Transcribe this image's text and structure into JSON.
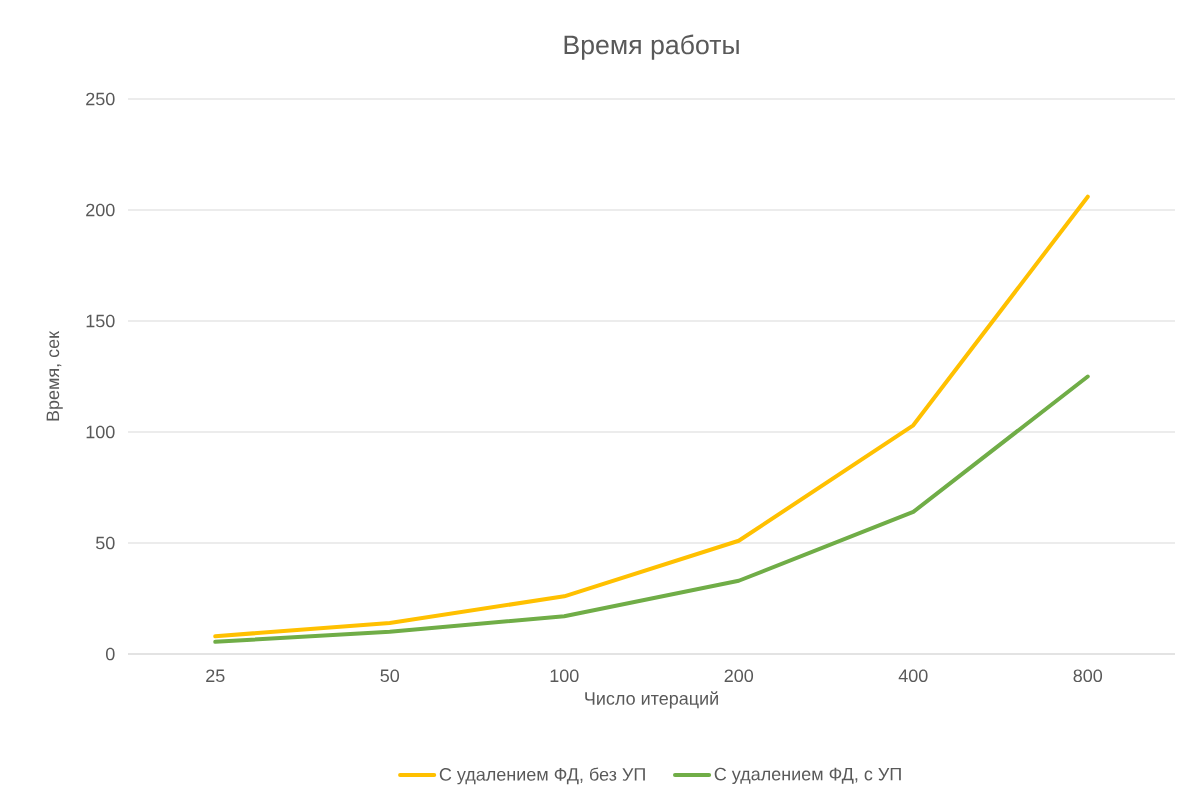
{
  "chart_data": {
    "type": "line",
    "title": "Время работы",
    "xlabel": "Число итераций",
    "ylabel": "Время, сек",
    "categories": [
      "25",
      "50",
      "100",
      "200",
      "400",
      "800"
    ],
    "series": [
      {
        "name": "С удалением ФД, без УП",
        "color": "#ffc000",
        "values": [
          8,
          14,
          26,
          51,
          103,
          206
        ]
      },
      {
        "name": "С удалением ФД, с УП",
        "color": "#70ad47",
        "values": [
          5.5,
          10,
          17,
          33,
          64,
          125
        ]
      }
    ],
    "ylim": [
      0,
      250
    ],
    "yticks": [
      0,
      50,
      100,
      150,
      200,
      250
    ],
    "grid": "y",
    "legend": "bottom",
    "marker": "none",
    "line_style": "solid"
  }
}
